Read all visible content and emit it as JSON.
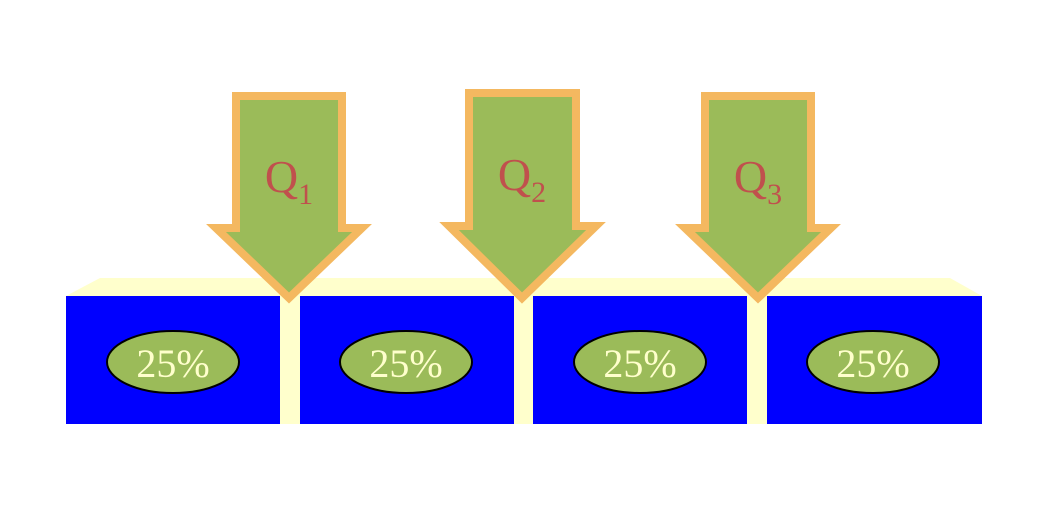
{
  "colors": {
    "background": "#ffffff",
    "box_fill": "#0000ff",
    "top_face": "#ffffcc",
    "ellipse_fill": "#9bbb59",
    "ellipse_stroke": "#000000",
    "percent_text": "#ffffcc",
    "arrow_fill": "#9bbb59",
    "arrow_stroke": "#f4b860",
    "quartile_text": "#c0504d"
  },
  "segments": [
    {
      "label": "25%"
    },
    {
      "label": "25%"
    },
    {
      "label": "25%"
    },
    {
      "label": "25%"
    }
  ],
  "quartiles": [
    {
      "letter": "Q",
      "sub": "1"
    },
    {
      "letter": "Q",
      "sub": "2"
    },
    {
      "letter": "Q",
      "sub": "3"
    }
  ]
}
